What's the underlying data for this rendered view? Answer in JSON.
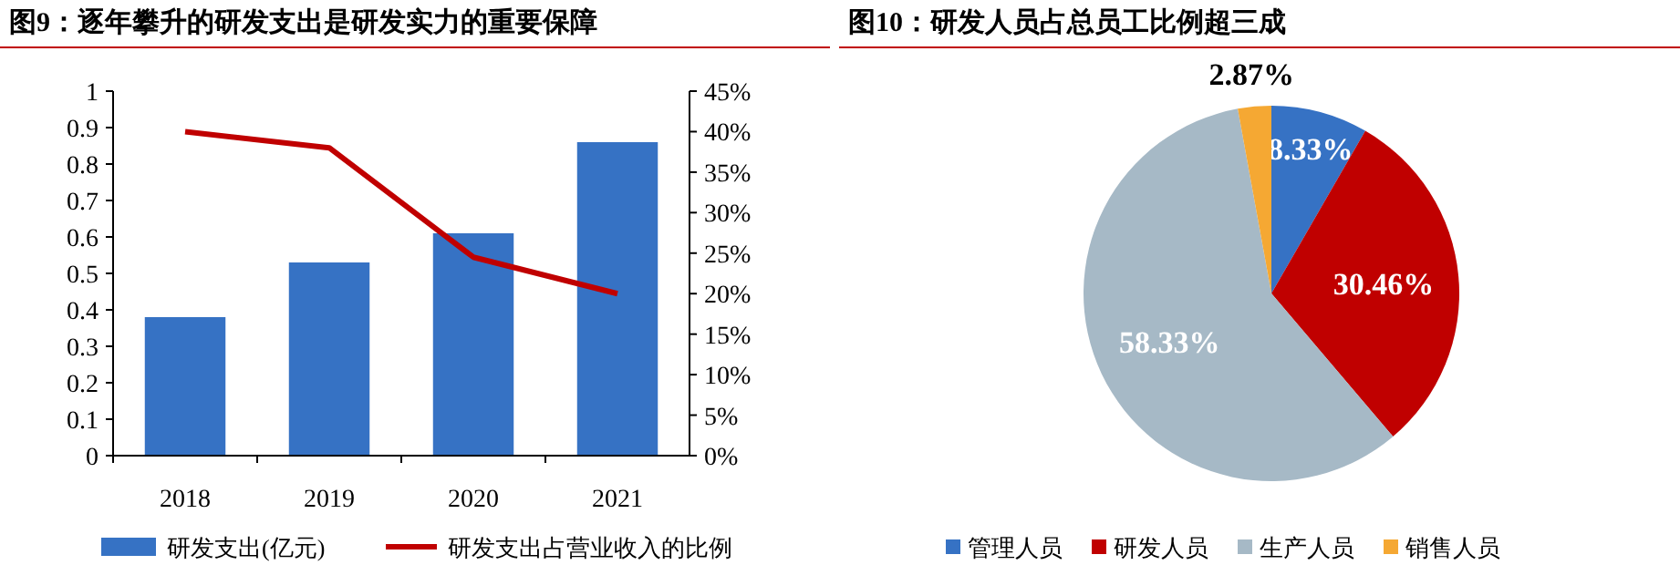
{
  "chart_data": [
    {
      "type": "bar",
      "title": "图9：逐年攀升的研发支出是研发实力的重要保障",
      "categories": [
        "2018",
        "2019",
        "2020",
        "2021"
      ],
      "series": [
        {
          "name": "研发支出(亿元)",
          "color": "#3672c4",
          "values": [
            0.38,
            0.53,
            0.61,
            0.86
          ]
        },
        {
          "name": "研发支出占营业收入的比例",
          "type": "line",
          "axis": "y2",
          "color": "#c00000",
          "values": [
            40,
            38,
            24.5,
            20
          ]
        }
      ],
      "ylim": [
        0,
        1
      ],
      "yticks": [
        0,
        0.1,
        0.2,
        0.3,
        0.4,
        0.5,
        0.6,
        0.7,
        0.8,
        0.9,
        1
      ],
      "y2lim": [
        0,
        45
      ],
      "y2ticks": [
        {
          "value": 0,
          "label": "0%"
        },
        {
          "value": 5,
          "label": "5%"
        },
        {
          "value": 10,
          "label": "10%"
        },
        {
          "value": 15,
          "label": "15%"
        },
        {
          "value": 20,
          "label": "20%"
        },
        {
          "value": 25,
          "label": "25%"
        },
        {
          "value": 30,
          "label": "30%"
        },
        {
          "value": 35,
          "label": "35%"
        },
        {
          "value": 40,
          "label": "40%"
        },
        {
          "value": 45,
          "label": "45%"
        }
      ],
      "legend": "bottom",
      "grid": false
    },
    {
      "type": "pie",
      "title": "图10：研发人员占总员工比例超三成",
      "categories": [
        "管理人员",
        "研发人员",
        "生产人员",
        "销售人员"
      ],
      "values": [
        8.33,
        30.46,
        58.33,
        2.87
      ],
      "colors": [
        "#3672c4",
        "#c00000",
        "#a6b9c6",
        "#f5a833"
      ],
      "value_labels": [
        "8.33%",
        "30.46%",
        "58.33%",
        "2.87%"
      ],
      "legend": "bottom"
    }
  ]
}
